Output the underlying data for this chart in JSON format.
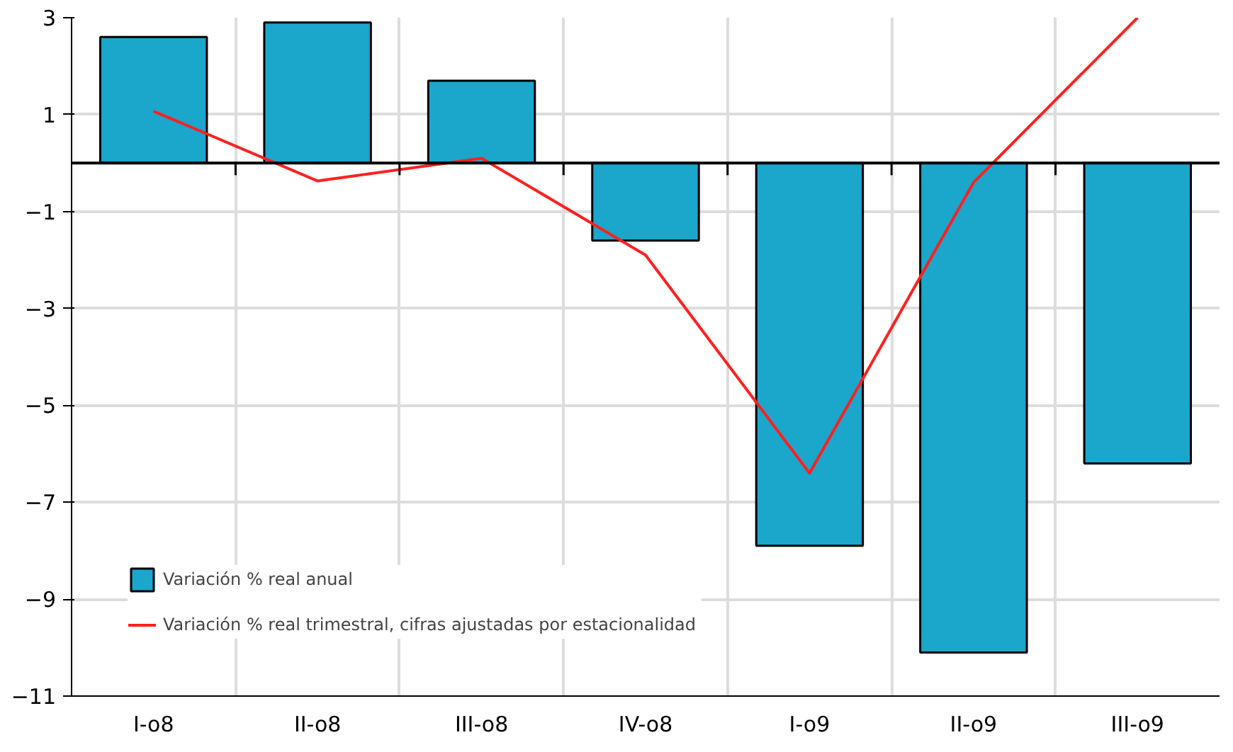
{
  "chart_data": {
    "type": "bar",
    "categories": [
      "I-o8",
      "II-o8",
      "III-o8",
      "IV-o8",
      "I-o9",
      "II-o9",
      "III-o9"
    ],
    "series": [
      {
        "name": "Variación % real anual",
        "color": "#1ba6cc",
        "values": [
          2.6,
          2.9,
          1.7,
          -1.6,
          -7.9,
          -10.1,
          -6.2
        ]
      },
      {
        "name": "Variación % real trimestral, cifras ajustadas por estacionalidad",
        "type": "line",
        "color": "#ff2020",
        "values": [
          1.07,
          -0.37,
          0.1,
          -1.9,
          -6.4,
          -0.4,
          3.0
        ]
      }
    ],
    "ylim": [
      -11,
      3
    ],
    "yticks": [
      -11,
      -9,
      -7,
      -5,
      -3,
      -1,
      1,
      3
    ],
    "grid": true,
    "legend": "bottom left",
    "ref_lines": [
      {
        "axis": "y",
        "value": 0,
        "color": "#000000"
      }
    ]
  }
}
